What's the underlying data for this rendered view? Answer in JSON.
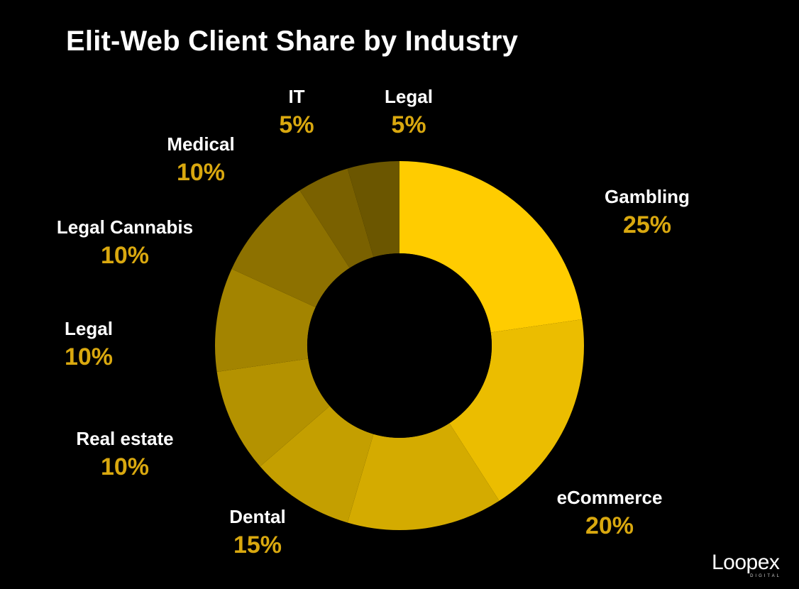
{
  "chart_data": {
    "type": "pie",
    "title": "Elit-Web Client Share by Industry",
    "donut": true,
    "start_angle_deg": 0,
    "direction": "clockwise",
    "slices": [
      {
        "label": "Gambling",
        "value": 25,
        "display": "25%",
        "color": "#FFCC00"
      },
      {
        "label": "eCommerce",
        "value": 20,
        "display": "20%",
        "color": "#EBBD00"
      },
      {
        "label": "Dental",
        "value": 15,
        "display": "15%",
        "color": "#D4AB00"
      },
      {
        "label": "Real estate",
        "value": 10,
        "display": "10%",
        "color": "#C49F00"
      },
      {
        "label": "Legal",
        "value": 10,
        "display": "10%",
        "color": "#B49200"
      },
      {
        "label": "Legal Cannabis",
        "value": 10,
        "display": "10%",
        "color": "#A38400"
      },
      {
        "label": "Medical",
        "value": 10,
        "display": "10%",
        "color": "#8D7100"
      },
      {
        "label": "IT",
        "value": 5,
        "display": "5%",
        "color": "#7A6100"
      },
      {
        "label": "Legal",
        "value": 5,
        "display": "5%",
        "color": "#6B5600"
      }
    ],
    "label_name_color": "#FFFFFF",
    "label_value_color": "#D9A80F",
    "background": "#000000"
  },
  "brand": {
    "logo_text": "Loopex",
    "logo_subtext": "DIGITAL"
  }
}
